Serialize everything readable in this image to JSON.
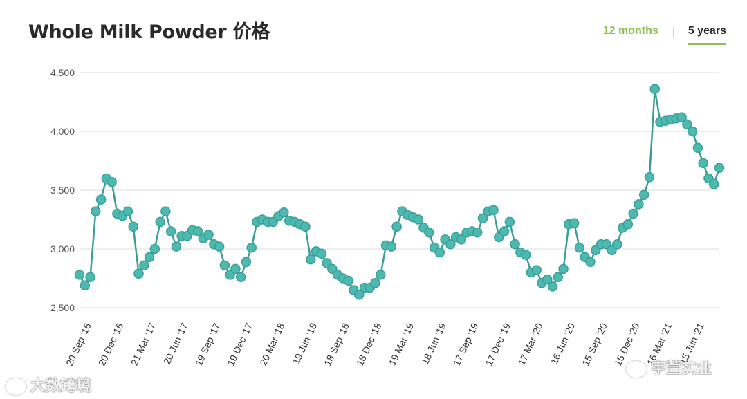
{
  "header": {
    "title": "Whole Milk Powder 价格",
    "tabs": [
      {
        "label": "12 months",
        "active": false
      },
      {
        "label": "5 years",
        "active": true
      }
    ]
  },
  "watermarks": {
    "left": "大数跨境",
    "right": "宇萱实业"
  },
  "chart_data": {
    "type": "line",
    "title": "Whole Milk Powder 价格",
    "xlabel": "",
    "ylabel": "",
    "ylim": [
      2500,
      4500
    ],
    "yticks": [
      2500,
      3000,
      3500,
      4000,
      4500
    ],
    "ytick_labels": [
      "2,500",
      "3,000",
      "3,500",
      "4,000",
      "4,500"
    ],
    "grid": true,
    "line_color": "#3a9e96",
    "marker_color": "#4cbab0",
    "x_tick_labels": [
      {
        "label": "20 Sep '16",
        "index": 0
      },
      {
        "label": "20 Dec '16",
        "index": 6
      },
      {
        "label": "21 Mar '17",
        "index": 12
      },
      {
        "label": "20 Jun '17",
        "index": 18
      },
      {
        "label": "19 Sep '17",
        "index": 24
      },
      {
        "label": "19 Dec '17",
        "index": 30
      },
      {
        "label": "20 Mar '18",
        "index": 36
      },
      {
        "label": "19 Jun '18",
        "index": 42
      },
      {
        "label": "18 Sep '18",
        "index": 48
      },
      {
        "label": "18 Dec '18",
        "index": 54
      },
      {
        "label": "19 Mar '19",
        "index": 60
      },
      {
        "label": "18 Jun '19",
        "index": 66
      },
      {
        "label": "17 Sep '19",
        "index": 72
      },
      {
        "label": "17 Dec '19",
        "index": 78
      },
      {
        "label": "17 Mar '20",
        "index": 84
      },
      {
        "label": "16 Jun '20",
        "index": 90
      },
      {
        "label": "15 Sep '20",
        "index": 96
      },
      {
        "label": "15 Dec '20",
        "index": 102
      },
      {
        "label": "16 Mar '21",
        "index": 108
      },
      {
        "label": "15 Jun '21",
        "index": 114
      }
    ],
    "values": [
      2780,
      2690,
      2760,
      3320,
      3420,
      3600,
      3570,
      3300,
      3280,
      3320,
      3190,
      2790,
      2860,
      2930,
      3000,
      3230,
      3320,
      3150,
      3020,
      3110,
      3110,
      3160,
      3150,
      3090,
      3120,
      3040,
      3020,
      2860,
      2780,
      2830,
      2760,
      2890,
      3010,
      3230,
      3250,
      3230,
      3230,
      3280,
      3310,
      3240,
      3230,
      3210,
      3190,
      2910,
      2980,
      2960,
      2880,
      2830,
      2780,
      2750,
      2730,
      2650,
      2610,
      2670,
      2670,
      2710,
      2780,
      3030,
      3020,
      3190,
      3320,
      3290,
      3270,
      3250,
      3180,
      3140,
      3010,
      2970,
      3080,
      3040,
      3100,
      3080,
      3140,
      3150,
      3140,
      3260,
      3320,
      3330,
      3100,
      3150,
      3230,
      3040,
      2970,
      2950,
      2800,
      2820,
      2710,
      2740,
      2680,
      2760,
      2830,
      3210,
      3220,
      3010,
      2930,
      2890,
      2990,
      3040,
      3040,
      2990,
      3040,
      3180,
      3210,
      3300,
      3380,
      3460,
      3610,
      4360,
      4080,
      4090,
      4100,
      4110,
      4120,
      4060,
      4000,
      3860,
      3730,
      3600,
      3550,
      3690
    ]
  }
}
